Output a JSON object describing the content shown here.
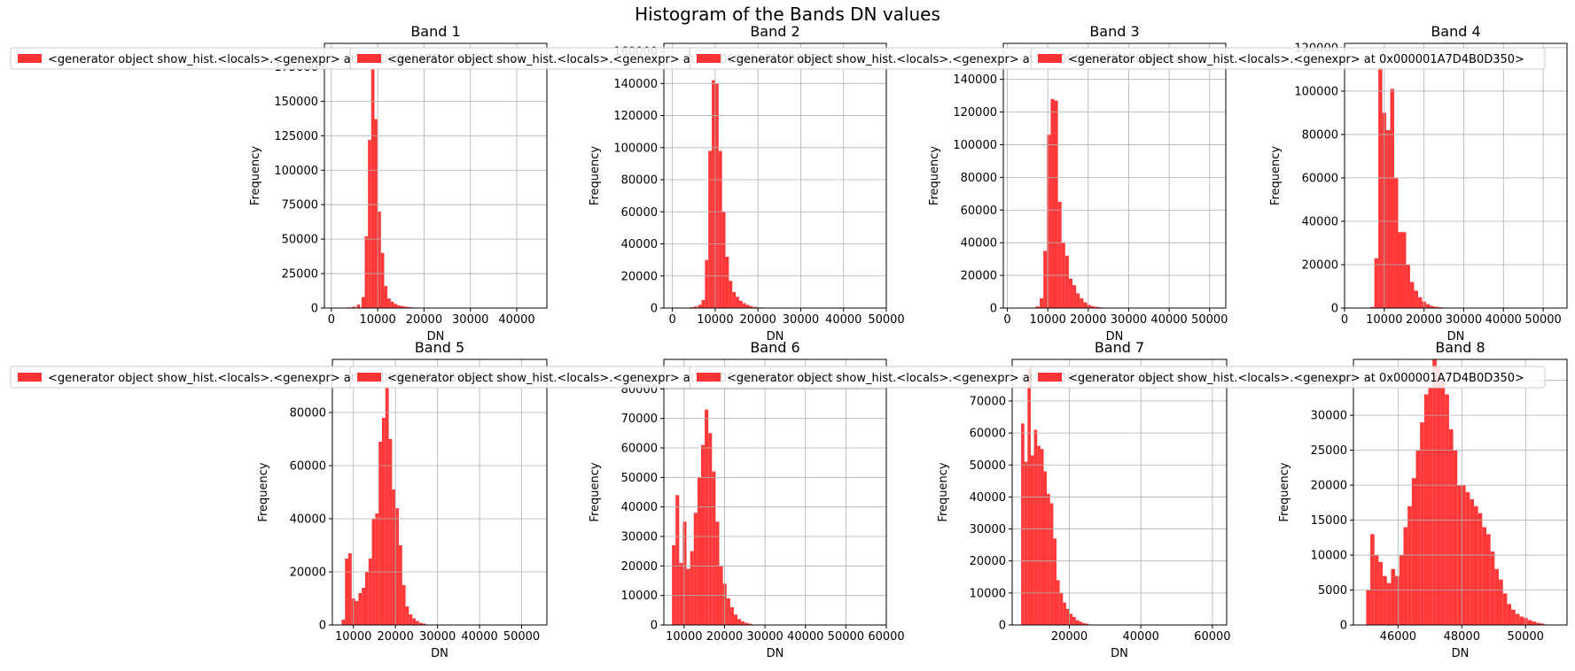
{
  "figure": {
    "suptitle": "Histogram of the Bands DN values",
    "bar_color": "#ff3333",
    "grid": true
  },
  "chart_data": [
    {
      "type": "bar",
      "title": "Band 1",
      "xlabel": "DN",
      "ylabel": "Frequency",
      "xlim": [
        -1500,
        46500
      ],
      "ylim": [
        0,
        192000
      ],
      "xticks": [
        0,
        10000,
        20000,
        30000,
        40000
      ],
      "yticks": [
        0,
        25000,
        50000,
        75000,
        100000,
        125000,
        150000,
        175000
      ],
      "legend": "<generator object show_hist.<locals>.<genexpr> at 0x000001A7D4B0D350>",
      "bins": [
        [
          3500,
          500
        ],
        [
          4500,
          1000
        ],
        [
          5500,
          2500
        ],
        [
          6500,
          8000
        ],
        [
          7200,
          52000
        ],
        [
          7900,
          122000
        ],
        [
          8600,
          180000
        ],
        [
          9300,
          137000
        ],
        [
          10000,
          70000
        ],
        [
          10700,
          40000
        ],
        [
          11400,
          16000
        ],
        [
          12100,
          7000
        ],
        [
          12800,
          4500
        ],
        [
          13500,
          3000
        ],
        [
          14200,
          2000
        ],
        [
          14900,
          1500
        ],
        [
          15600,
          1000
        ],
        [
          16300,
          800
        ],
        [
          17000,
          500
        ],
        [
          18000,
          300
        ]
      ],
      "bin_width": 700
    },
    {
      "type": "bar",
      "title": "Band 2",
      "xlabel": "DN",
      "ylabel": "Frequency",
      "xlim": [
        -2000,
        50000
      ],
      "ylim": [
        0,
        165000
      ],
      "xticks": [
        0,
        10000,
        20000,
        30000,
        40000,
        50000
      ],
      "yticks": [
        0,
        20000,
        40000,
        60000,
        80000,
        100000,
        120000,
        140000,
        160000
      ],
      "legend": "<generator object show_hist.<locals>.<genexpr> at 0x000001A7D4B0D350>",
      "bins": [
        [
          4000,
          500
        ],
        [
          5000,
          1000
        ],
        [
          6000,
          2000
        ],
        [
          6800,
          5000
        ],
        [
          7600,
          30000
        ],
        [
          8400,
          98000
        ],
        [
          9200,
          142000
        ],
        [
          10000,
          140000
        ],
        [
          10800,
          98000
        ],
        [
          11600,
          60000
        ],
        [
          12400,
          32000
        ],
        [
          13200,
          17000
        ],
        [
          14000,
          10000
        ],
        [
          14800,
          7000
        ],
        [
          15600,
          4500
        ],
        [
          16400,
          3000
        ],
        [
          17200,
          2000
        ],
        [
          18000,
          1200
        ],
        [
          19000,
          700
        ],
        [
          20000,
          400
        ]
      ],
      "bin_width": 800
    },
    {
      "type": "bar",
      "title": "Band 3",
      "xlabel": "DN",
      "ylabel": "Frequency",
      "xlim": [
        -1000,
        54000
      ],
      "ylim": [
        0,
        162000
      ],
      "xticks": [
        0,
        10000,
        20000,
        30000,
        40000,
        50000
      ],
      "yticks": [
        0,
        20000,
        40000,
        60000,
        80000,
        100000,
        120000,
        140000
      ],
      "legend": "<generator object show_hist.<locals>.<genexpr> at 0x000001A7D4B0D350>",
      "bins": [
        [
          7000,
          1000
        ],
        [
          8000,
          6000
        ],
        [
          8900,
          35000
        ],
        [
          9800,
          106000
        ],
        [
          10700,
          128000
        ],
        [
          11600,
          127000
        ],
        [
          12500,
          65000
        ],
        [
          13400,
          40000
        ],
        [
          14300,
          32000
        ],
        [
          15200,
          18000
        ],
        [
          16100,
          14000
        ],
        [
          17000,
          9000
        ],
        [
          17900,
          6000
        ],
        [
          18800,
          3500
        ],
        [
          19700,
          2000
        ],
        [
          20600,
          1200
        ],
        [
          21500,
          800
        ],
        [
          22400,
          500
        ]
      ],
      "bin_width": 900
    },
    {
      "type": "bar",
      "title": "Band 4",
      "xlabel": "DN",
      "ylabel": "Frequency",
      "xlim": [
        0,
        56000
      ],
      "ylim": [
        0,
        122000
      ],
      "xticks": [
        0,
        10000,
        20000,
        30000,
        40000,
        50000
      ],
      "yticks": [
        0,
        20000,
        40000,
        60000,
        80000,
        100000,
        120000
      ],
      "legend": "<generator object show_hist.<locals>.<genexpr> at 0x000001A7D4B0D350>",
      "bins": [
        [
          6500,
          500
        ],
        [
          7500,
          23000
        ],
        [
          8500,
          111000
        ],
        [
          9500,
          90000
        ],
        [
          10500,
          82000
        ],
        [
          11500,
          101000
        ],
        [
          12500,
          60000
        ],
        [
          13500,
          35000
        ],
        [
          14500,
          35000
        ],
        [
          15500,
          20000
        ],
        [
          16500,
          12000
        ],
        [
          17500,
          8000
        ],
        [
          18500,
          5000
        ],
        [
          19500,
          3000
        ],
        [
          20500,
          1800
        ],
        [
          21500,
          1000
        ],
        [
          22500,
          600
        ],
        [
          23500,
          400
        ]
      ],
      "bin_width": 1000
    },
    {
      "type": "bar",
      "title": "Band 5",
      "xlabel": "DN",
      "ylabel": "Frequency",
      "xlim": [
        5000,
        56000
      ],
      "ylim": [
        0,
        100000
      ],
      "xticks": [
        10000,
        20000,
        30000,
        40000,
        50000
      ],
      "yticks": [
        0,
        20000,
        40000,
        60000,
        80000
      ],
      "legend": "<generator object show_hist.<locals>.<genexpr> at 0x000001A7D4B0D350>",
      "bins": [
        [
          7200,
          2000
        ],
        [
          8000,
          25000
        ],
        [
          8800,
          27000
        ],
        [
          9600,
          10000
        ],
        [
          10400,
          9000
        ],
        [
          11200,
          12000
        ],
        [
          12000,
          14000
        ],
        [
          12800,
          20000
        ],
        [
          13600,
          25000
        ],
        [
          14400,
          40000
        ],
        [
          15200,
          42000
        ],
        [
          16000,
          69000
        ],
        [
          16800,
          78000
        ],
        [
          17600,
          93000
        ],
        [
          18400,
          70000
        ],
        [
          19200,
          51000
        ],
        [
          20000,
          44000
        ],
        [
          20800,
          30000
        ],
        [
          21600,
          15000
        ],
        [
          22400,
          7000
        ],
        [
          23200,
          4000
        ],
        [
          24000,
          2500
        ],
        [
          24800,
          1500
        ],
        [
          25600,
          800
        ],
        [
          26400,
          500
        ]
      ],
      "bin_width": 800
    },
    {
      "type": "bar",
      "title": "Band 6",
      "xlabel": "DN",
      "ylabel": "Frequency",
      "xlim": [
        5000,
        60000
      ],
      "ylim": [
        0,
        90000
      ],
      "xticks": [
        10000,
        20000,
        30000,
        40000,
        50000,
        60000
      ],
      "yticks": [
        0,
        10000,
        20000,
        30000,
        40000,
        50000,
        60000,
        70000,
        80000
      ],
      "legend": "<generator object show_hist.<locals>.<genexpr> at 0x000001A7D4B0D350>",
      "bins": [
        [
          7000,
          27000
        ],
        [
          7900,
          44000
        ],
        [
          8800,
          21000
        ],
        [
          9700,
          35000
        ],
        [
          10600,
          19000
        ],
        [
          11500,
          25000
        ],
        [
          12400,
          38000
        ],
        [
          13300,
          50000
        ],
        [
          14200,
          61000
        ],
        [
          15100,
          73000
        ],
        [
          16000,
          65000
        ],
        [
          16900,
          52000
        ],
        [
          17800,
          35000
        ],
        [
          18700,
          20000
        ],
        [
          19600,
          14000
        ],
        [
          20500,
          9000
        ],
        [
          21400,
          6000
        ],
        [
          22300,
          3500
        ],
        [
          23200,
          2000
        ],
        [
          24100,
          1200
        ],
        [
          25000,
          700
        ],
        [
          25900,
          400
        ]
      ],
      "bin_width": 900
    },
    {
      "type": "bar",
      "title": "Band 7",
      "xlabel": "DN",
      "ylabel": "Frequency",
      "xlim": [
        4000,
        64000
      ],
      "ylim": [
        0,
        83000
      ],
      "xticks": [
        20000,
        40000,
        60000
      ],
      "yticks": [
        0,
        10000,
        20000,
        30000,
        40000,
        50000,
        60000,
        70000
      ],
      "legend": "<generator object show_hist.<locals>.<genexpr> at 0x000001A7D4B0D350>",
      "bins": [
        [
          6500,
          63000
        ],
        [
          7400,
          51000
        ],
        [
          8300,
          80000
        ],
        [
          9200,
          53000
        ],
        [
          10100,
          61000
        ],
        [
          11000,
          56000
        ],
        [
          11900,
          55000
        ],
        [
          12800,
          48000
        ],
        [
          13700,
          41000
        ],
        [
          14600,
          38000
        ],
        [
          15500,
          27000
        ],
        [
          16400,
          14000
        ],
        [
          17300,
          10000
        ],
        [
          18200,
          7000
        ],
        [
          19100,
          5000
        ],
        [
          20000,
          3500
        ],
        [
          20900,
          2500
        ],
        [
          21800,
          1500
        ],
        [
          22700,
          1000
        ],
        [
          23600,
          600
        ],
        [
          24500,
          400
        ]
      ],
      "bin_width": 900
    },
    {
      "type": "bar",
      "title": "Band 8",
      "xlabel": "DN",
      "ylabel": "Frequency",
      "xlim": [
        44600,
        51300
      ],
      "ylim": [
        0,
        38000
      ],
      "xticks": [
        46000,
        48000,
        50000
      ],
      "yticks": [
        0,
        5000,
        10000,
        15000,
        20000,
        25000,
        30000,
        35000
      ],
      "legend": "<generator object show_hist.<locals>.<genexpr> at 0x000001A7D4B0D350>",
      "bins": [
        [
          45000,
          5000
        ],
        [
          45130,
          13000
        ],
        [
          45260,
          10000
        ],
        [
          45390,
          9000
        ],
        [
          45520,
          7000
        ],
        [
          45650,
          6000
        ],
        [
          45780,
          8000
        ],
        [
          45910,
          7000
        ],
        [
          46040,
          10000
        ],
        [
          46170,
          14000
        ],
        [
          46300,
          17000
        ],
        [
          46430,
          21000
        ],
        [
          46560,
          25000
        ],
        [
          46690,
          29000
        ],
        [
          46820,
          33000
        ],
        [
          46950,
          34000
        ],
        [
          47080,
          38000
        ],
        [
          47210,
          37000
        ],
        [
          47340,
          35000
        ],
        [
          47470,
          33000
        ],
        [
          47600,
          28000
        ],
        [
          47730,
          25000
        ],
        [
          47860,
          20000
        ],
        [
          47990,
          20000
        ],
        [
          48120,
          19000
        ],
        [
          48250,
          18000
        ],
        [
          48380,
          17000
        ],
        [
          48510,
          16000
        ],
        [
          48640,
          14000
        ],
        [
          48770,
          13000
        ],
        [
          48900,
          10500
        ],
        [
          49030,
          8000
        ],
        [
          49160,
          6500
        ],
        [
          49290,
          4500
        ],
        [
          49420,
          3000
        ],
        [
          49550,
          2200
        ],
        [
          49680,
          1600
        ],
        [
          49810,
          1200
        ],
        [
          49940,
          1000
        ],
        [
          50070,
          700
        ],
        [
          50200,
          500
        ],
        [
          50330,
          300
        ],
        [
          50460,
          200
        ]
      ],
      "bin_width": 130
    }
  ]
}
